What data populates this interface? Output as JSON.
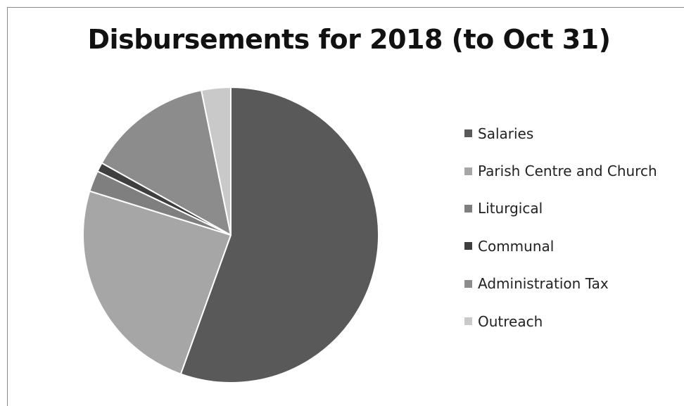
{
  "chart_data": {
    "type": "pie",
    "title": "Disbursements for 2018 (to Oct 31)",
    "categories": [
      "Salaries",
      "Parish Centre and Church",
      "Liturgical",
      "Communal",
      "Administration Tax",
      "Outreach"
    ],
    "values": [
      55.5,
      24.3,
      2.3,
      1.0,
      13.7,
      3.2
    ],
    "unit": "percent",
    "colors": [
      "#595959",
      "#a6a6a6",
      "#7f7f7f",
      "#3f3f3f",
      "#8c8c8c",
      "#c9c9c9"
    ],
    "start_angle_deg": 0,
    "direction": "clockwise",
    "legend_position": "right"
  }
}
